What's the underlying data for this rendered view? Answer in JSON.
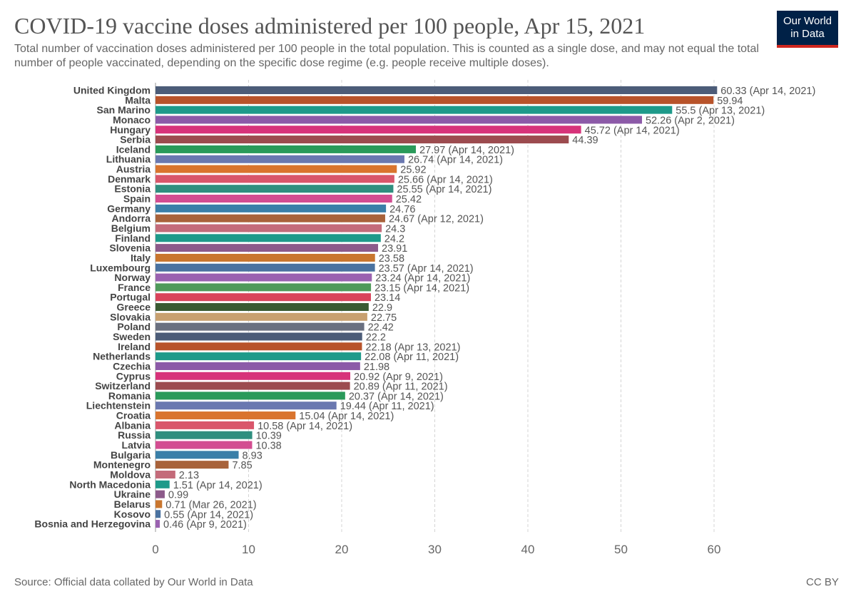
{
  "header": {
    "title": "COVID-19 vaccine doses administered per 100 people, Apr 15, 2021",
    "subtitle": "Total number of vaccination doses administered per 100 people in the total population. This is counted as a single dose, and may not equal the total number of people vaccinated, depending on the specific dose regime (e.g. people receive multiple doses).",
    "logo_line1": "Our World",
    "logo_line2": "in Data"
  },
  "footer": {
    "source": "Source: Official data collated by Our World in Data",
    "license": "CC BY"
  },
  "chart_data": {
    "type": "bar",
    "orientation": "horizontal",
    "xlim": [
      0,
      60
    ],
    "xticks": [
      0,
      10,
      20,
      30,
      40,
      50,
      60
    ],
    "grid": true,
    "categories": [
      "United Kingdom",
      "Malta",
      "San Marino",
      "Monaco",
      "Hungary",
      "Serbia",
      "Iceland",
      "Lithuania",
      "Austria",
      "Denmark",
      "Estonia",
      "Spain",
      "Germany",
      "Andorra",
      "Belgium",
      "Finland",
      "Slovenia",
      "Italy",
      "Luxembourg",
      "Norway",
      "France",
      "Portugal",
      "Greece",
      "Slovakia",
      "Poland",
      "Sweden",
      "Ireland",
      "Netherlands",
      "Czechia",
      "Cyprus",
      "Switzerland",
      "Romania",
      "Liechtenstein",
      "Croatia",
      "Albania",
      "Russia",
      "Latvia",
      "Bulgaria",
      "Montenegro",
      "Moldova",
      "North Macedonia",
      "Ukraine",
      "Belarus",
      "Kosovo",
      "Bosnia and Herzegovina"
    ],
    "values": [
      60.33,
      59.94,
      55.5,
      52.26,
      45.72,
      44.39,
      27.97,
      26.74,
      25.92,
      25.66,
      25.55,
      25.42,
      24.76,
      24.67,
      24.3,
      24.2,
      23.91,
      23.58,
      23.57,
      23.24,
      23.15,
      23.14,
      22.9,
      22.75,
      22.42,
      22.2,
      22.18,
      22.08,
      21.98,
      20.92,
      20.89,
      20.37,
      19.44,
      15.04,
      10.58,
      10.39,
      10.38,
      8.93,
      7.85,
      2.13,
      1.51,
      0.99,
      0.71,
      0.55,
      0.46
    ],
    "value_labels": [
      "60.33 (Apr 14, 2021)",
      "59.94",
      "55.5 (Apr 13, 2021)",
      "52.26 (Apr 2, 2021)",
      "45.72 (Apr 14, 2021)",
      "44.39",
      "27.97 (Apr 14, 2021)",
      "26.74 (Apr 14, 2021)",
      "25.92",
      "25.66 (Apr 14, 2021)",
      "25.55 (Apr 14, 2021)",
      "25.42",
      "24.76",
      "24.67 (Apr 12, 2021)",
      "24.3",
      "24.2",
      "23.91",
      "23.58",
      "23.57 (Apr 14, 2021)",
      "23.24 (Apr 14, 2021)",
      "23.15 (Apr 14, 2021)",
      "23.14",
      "22.9",
      "22.75",
      "22.42",
      "22.2",
      "22.18 (Apr 13, 2021)",
      "22.08 (Apr 11, 2021)",
      "21.98",
      "20.92 (Apr 9, 2021)",
      "20.89 (Apr 11, 2021)",
      "20.37 (Apr 14, 2021)",
      "19.44 (Apr 11, 2021)",
      "15.04 (Apr 14, 2021)",
      "10.58 (Apr 14, 2021)",
      "10.39",
      "10.38",
      "8.93",
      "7.85",
      "2.13",
      "1.51 (Apr 14, 2021)",
      "0.99",
      "0.71 (Mar 26, 2021)",
      "0.55 (Apr 14, 2021)",
      "0.46 (Apr 9, 2021)"
    ],
    "colors": [
      "#4c5c78",
      "#b8532a",
      "#1e9a8a",
      "#8c5aa8",
      "#d7337a",
      "#9c4b4f",
      "#2a9a5a",
      "#6a78b0",
      "#d9742e",
      "#d9566b",
      "#2f8f7f",
      "#d34d91",
      "#3a7fa8",
      "#a8623a",
      "#c46b7a",
      "#1e9a8a",
      "#8c5a8a",
      "#c9762e",
      "#4a72a0",
      "#9a62b0",
      "#4f9a5a",
      "#d9435a",
      "#3a5a32",
      "#c8a070",
      "#6a7080",
      "#4c5c78",
      "#b8532a",
      "#1e9a8a",
      "#8c5aa8",
      "#d7337a",
      "#9c4b4f",
      "#2a9a5a",
      "#6a78b0",
      "#d9742e",
      "#d9566b",
      "#2f8f7f",
      "#d34d91",
      "#3a7fa8",
      "#a8623a",
      "#c46b7a",
      "#1e9a8a",
      "#8c5a8a",
      "#c9762e",
      "#4a72a0",
      "#9a62b0"
    ]
  }
}
